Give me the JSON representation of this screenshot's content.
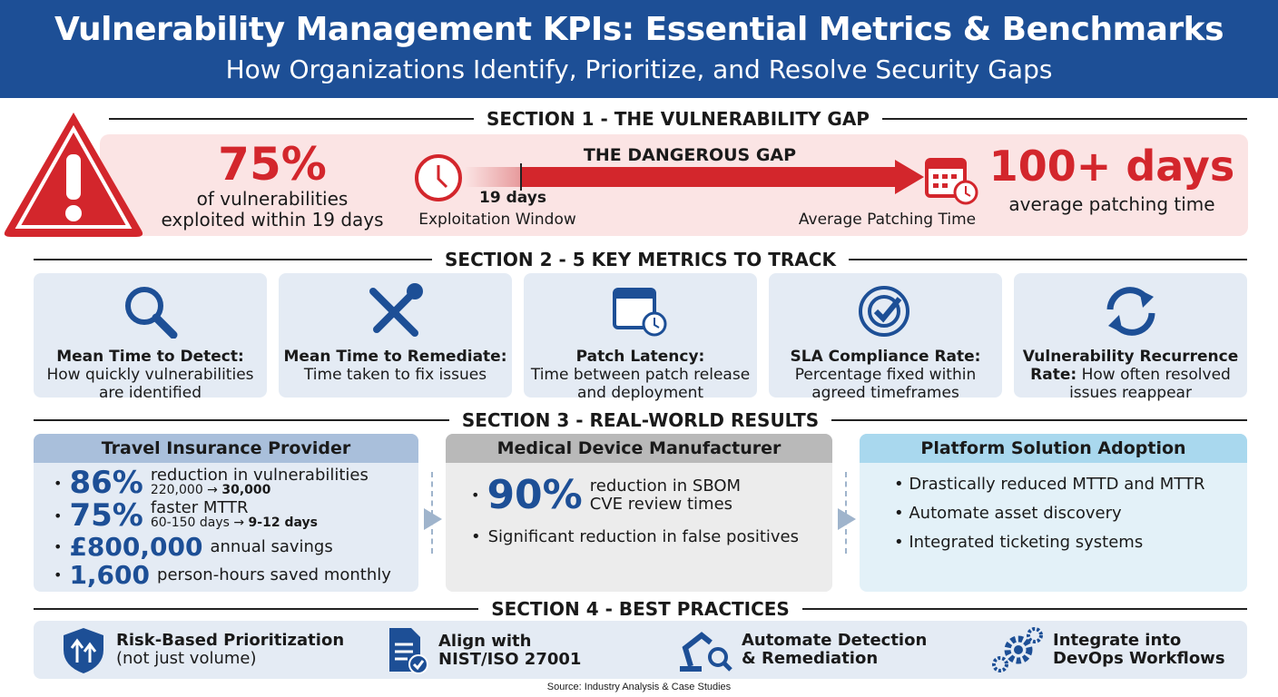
{
  "header": {
    "title": "Vulnerability Management KPIs: Essential Metrics & Benchmarks",
    "subtitle": "How Organizations Identify, Prioritize, and Resolve Security Gaps"
  },
  "section1": {
    "heading": "SECTION 1 - THE VULNERABILITY GAP",
    "stat": "75%",
    "stat_desc_1": "of vulnerabilities",
    "stat_desc_2": "exploited within 19 days",
    "gap_label": "THE DANGEROUS GAP",
    "marker": "19 days",
    "exploit_label": "Exploitation Window",
    "patch_label": "Average Patching Time",
    "patch_stat": "100+ days",
    "patch_desc": "average patching time",
    "colors": {
      "red": "#d3262c",
      "panel": "#fbe4e4"
    }
  },
  "section2": {
    "heading": "SECTION 2 - 5 KEY METRICS TO TRACK",
    "metrics": [
      {
        "icon": "magnifier-icon",
        "title": "Mean Time to Detect:",
        "desc": "How quickly vulnerabilities are identified"
      },
      {
        "icon": "tools-icon",
        "title": "Mean Time to Remediate:",
        "desc": "Time taken to fix issues"
      },
      {
        "icon": "calendar-clock-icon",
        "title": "Patch Latency:",
        "desc": "Time between patch release and deployment"
      },
      {
        "icon": "target-check-icon",
        "title": "SLA Compliance Rate:",
        "desc": "Percentage fixed within agreed timeframes"
      },
      {
        "icon": "refresh-icon",
        "title": "Vulnerability Recurrence Rate:",
        "desc": "How often resolved issues reappear"
      }
    ]
  },
  "section3": {
    "heading": "SECTION 3 - REAL-WORLD RESULTS",
    "case1": {
      "title": "Travel Insurance Provider",
      "items": [
        {
          "big": "86%",
          "text": "reduction in vulnerabilities",
          "sub_from": "220,000 →",
          "sub_to": "30,000"
        },
        {
          "big": "75%",
          "text": "faster MTTR",
          "sub_from": "60-150 days →",
          "sub_to": "9-12 days"
        },
        {
          "big": "£800,000",
          "text": "annual savings"
        },
        {
          "big": "1,600",
          "text": "person-hours saved monthly"
        }
      ]
    },
    "case2": {
      "title": "Medical Device Manufacturer",
      "big": "90%",
      "text": "reduction in SBOM CVE review times",
      "item2": "Significant reduction in false positives"
    },
    "case3": {
      "title": "Platform Solution Adoption",
      "items": [
        "Drastically reduced MTTD and MTTR",
        "Automate asset discovery",
        "Integrated ticketing systems"
      ]
    }
  },
  "section4": {
    "heading": "SECTION 4 - BEST PRACTICES",
    "practices": [
      {
        "icon": "shield-arrows-icon",
        "line1": "Risk-Based Prioritization",
        "line2": "(not just volume)"
      },
      {
        "icon": "document-check-icon",
        "line1": "Align with",
        "line2": "NIST/ISO 27001"
      },
      {
        "icon": "robot-arm-icon",
        "line1": "Automate Detection",
        "line2": "& Remediation"
      },
      {
        "icon": "gears-cycle-icon",
        "line1": "Integrate into",
        "line2": "DevOps Workflows"
      }
    ]
  },
  "source": "Source: Industry Analysis & Case Studies"
}
